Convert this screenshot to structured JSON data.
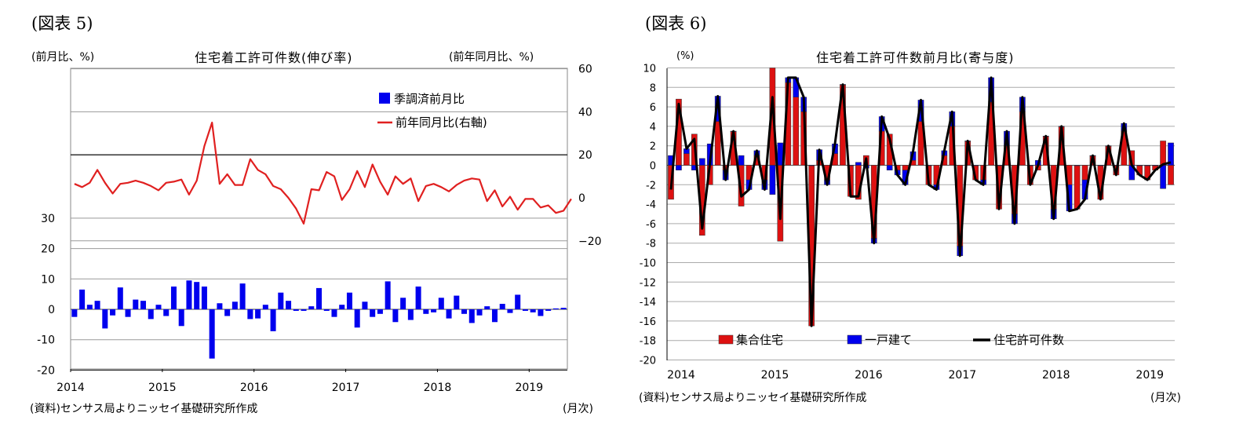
{
  "left_panel": {
    "figure_label": "(図表 5)",
    "left_unit": "(前月比、%)",
    "right_unit": "(前年同月比、%)",
    "source": "(資料)センサス局よりニッセイ基礎研究所作成",
    "x_unit": "(月次)"
  },
  "right_panel": {
    "figure_label": "(図表 6)",
    "y_unit": "(%)",
    "source": "(資料)センサス局よりニッセイ基礎研究所作成",
    "x_unit": "(月次)"
  },
  "colors": {
    "blue": "#0000ee",
    "red": "#e02020",
    "bar_red": "#dd1111",
    "black": "#000000"
  },
  "chart_data": [
    {
      "type": "bar",
      "title": "住宅着工許可件数(伸び率)",
      "xlabel": "(月次)",
      "ylabel": "(前月比、%)",
      "ylabel_right": "(前年同月比、%)",
      "ylim": [
        -20,
        30
      ],
      "ylim_right": [
        -80,
        60
      ],
      "y_ticks": [
        -20,
        -10,
        0,
        10,
        20,
        30
      ],
      "y_ticks_right": [
        -20,
        0,
        20,
        40,
        60
      ],
      "x_ticks": [
        "2014",
        "2015",
        "2016",
        "2017",
        "2018",
        "2019"
      ],
      "legend_position": "top-right",
      "series": [
        {
          "name": "季調済前月比",
          "type": "bar",
          "axis": "left",
          "values": [
            -2.5,
            6.5,
            1.5,
            2.8,
            -6.3,
            -2.0,
            7.2,
            -2.5,
            3.2,
            2.8,
            -3.2,
            1.5,
            -2.2,
            7.5,
            -5.5,
            9.5,
            9.0,
            7.5,
            -16.2,
            2.0,
            -2.2,
            2.5,
            8.5,
            -3.2,
            -3.0,
            1.5,
            -7.2,
            5.5,
            2.8,
            -0.5,
            -0.5,
            1.0,
            7.0,
            -0.5,
            -2.5,
            1.5,
            5.5,
            -6.0,
            2.5,
            -2.5,
            -1.5,
            9.2,
            -4.2,
            3.8,
            -3.5,
            7.5,
            -1.5,
            -1.0,
            3.8,
            -3.0,
            4.5,
            -1.5,
            -4.5,
            -2.0,
            1.0,
            -4.2,
            1.8,
            -1.2,
            4.8,
            -0.5,
            -1.0,
            -2.2,
            -0.5,
            0.3,
            0.5
          ]
        },
        {
          "name": "前年同月比(右軸)",
          "type": "line",
          "axis": "right",
          "values": [
            6.5,
            5,
            7,
            13,
            7,
            2,
            6.5,
            7,
            8,
            7,
            5.5,
            3.5,
            7,
            7.5,
            8.5,
            1.5,
            8,
            24,
            35,
            6.5,
            11,
            6,
            6,
            18,
            13,
            11,
            5.5,
            4,
            0,
            -5,
            -12,
            4,
            3.5,
            12,
            10,
            -1,
            4,
            12.5,
            5,
            15.5,
            7.5,
            1.5,
            10,
            6.5,
            9,
            -1.5,
            5.5,
            6.5,
            5,
            3,
            6,
            8,
            9,
            8.5,
            -1.5,
            3.5,
            -4,
            0.5,
            -5.5,
            -0.5,
            -0.5,
            -4.5,
            -3.5,
            -7,
            -6,
            -0.5
          ]
        }
      ]
    },
    {
      "type": "bar",
      "title": "住宅着工許可件数前月比(寄与度)",
      "xlabel": "(月次)",
      "ylabel": "(%)",
      "ylim": [
        -20,
        10
      ],
      "y_ticks": [
        -20,
        -18,
        -16,
        -14,
        -12,
        -10,
        -8,
        -6,
        -4,
        -2,
        0,
        2,
        4,
        6,
        8,
        10
      ],
      "x_ticks": [
        "2014",
        "2015",
        "2016",
        "2017",
        "2018",
        "2019"
      ],
      "stacked": true,
      "legend_position": "bottom",
      "series": [
        {
          "name": "集合住宅",
          "type": "bar",
          "values": [
            -3.5,
            6.8,
            1.2,
            3.2,
            -7.2,
            -2.0,
            4.5,
            -0.5,
            3.5,
            -4.2,
            -1.5,
            1.0,
            -1.5,
            10.0,
            -7.8,
            8.5,
            7.0,
            5.5,
            -16.5,
            0.5,
            -1.5,
            1.2,
            8.3,
            -3.2,
            -3.5,
            1.0,
            -7.5,
            3.5,
            3.2,
            -0.5,
            -0.5,
            0.5,
            4.5,
            -2.0,
            -2.0,
            1.0,
            4.0,
            -8.3,
            2.5,
            -1.5,
            -1.5,
            6.5,
            -4.5,
            2.0,
            -5.0,
            5.5,
            -2.0,
            -0.5,
            3.0,
            -4.5,
            4.0,
            -2.0,
            -4.5,
            -1.5,
            1.0,
            -3.5,
            2.0,
            -1.0,
            3.5,
            1.5,
            -1.0,
            -1.5,
            -0.5,
            2.5,
            -2.0
          ]
        },
        {
          "name": "一戸建て",
          "type": "bar",
          "values": [
            1.0,
            -0.5,
            0.5,
            -0.5,
            0.7,
            2.2,
            2.6,
            -1.0,
            0.0,
            1.0,
            -1.0,
            0.5,
            -1.0,
            -3.0,
            2.3,
            0.5,
            2.0,
            1.5,
            0.0,
            1.1,
            -0.5,
            1.0,
            0.0,
            0.0,
            0.3,
            -0.3,
            -0.5,
            1.5,
            -0.5,
            -0.5,
            -1.5,
            0.9,
            2.2,
            0.0,
            -0.5,
            0.5,
            1.5,
            -1.0,
            0.0,
            0.0,
            -0.5,
            2.5,
            0.0,
            1.5,
            -1.0,
            1.5,
            0.0,
            0.5,
            0.0,
            -1.0,
            0.0,
            -2.7,
            0.0,
            -2.0,
            0.0,
            0.0,
            0.0,
            0.0,
            0.8,
            -1.5,
            0.0,
            0.0,
            0.0,
            -2.4,
            2.3
          ]
        },
        {
          "name": "住宅許可件数",
          "type": "line",
          "values": [
            -2.5,
            6.3,
            1.7,
            2.7,
            -6.5,
            0.2,
            7.1,
            -1.5,
            3.5,
            -3.2,
            -2.5,
            1.5,
            -2.5,
            7.0,
            -5.5,
            9.0,
            9.0,
            7.0,
            -16.5,
            1.6,
            -2.0,
            2.2,
            8.3,
            -3.2,
            -3.2,
            0.7,
            -8.0,
            5.0,
            2.7,
            -1.0,
            -2.0,
            1.4,
            6.7,
            -2.0,
            -2.5,
            1.5,
            5.5,
            -9.3,
            2.5,
            -1.5,
            -2.0,
            9.0,
            -4.5,
            3.5,
            -6.0,
            7.0,
            -2.0,
            0.0,
            3.0,
            -5.5,
            4.0,
            -4.7,
            -4.5,
            -3.5,
            1.0,
            -3.5,
            2.0,
            -1.0,
            4.3,
            0.0,
            -1.0,
            -1.5,
            -0.5,
            0.1,
            0.3
          ]
        }
      ]
    }
  ]
}
